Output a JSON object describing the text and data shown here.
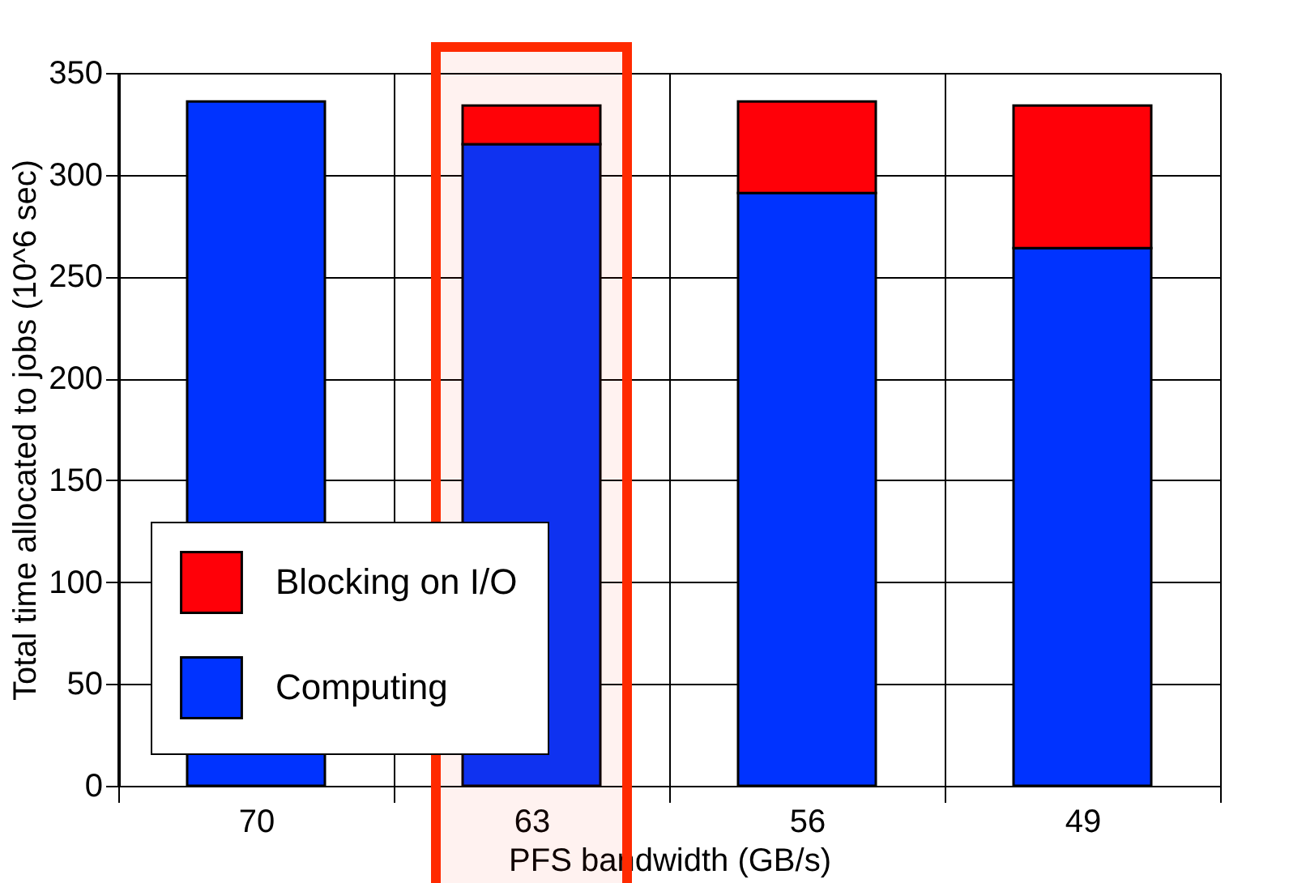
{
  "chart_data": {
    "type": "bar",
    "stacked": true,
    "xlabel": "PFS bandwidth (GB/s)",
    "ylabel": "Total time allocated to jobs (10^6 sec)",
    "categories": [
      "70",
      "63",
      "56",
      "49"
    ],
    "series": [
      {
        "name": "Computing",
        "color": "#0033ff",
        "values": [
          336,
          315,
          291,
          264
        ]
      },
      {
        "name": "Blocking on I/O",
        "color": "#ff0008",
        "values": [
          0,
          19,
          45,
          70
        ]
      }
    ],
    "ylim": [
      0,
      350
    ],
    "yticks": [
      0,
      50,
      100,
      150,
      200,
      250,
      300,
      350
    ],
    "grid": true,
    "legend": "bottom left",
    "bands": [
      {
        "axis": "x",
        "from": "63",
        "to": "63",
        "color": "#ff2a00"
      }
    ]
  }
}
